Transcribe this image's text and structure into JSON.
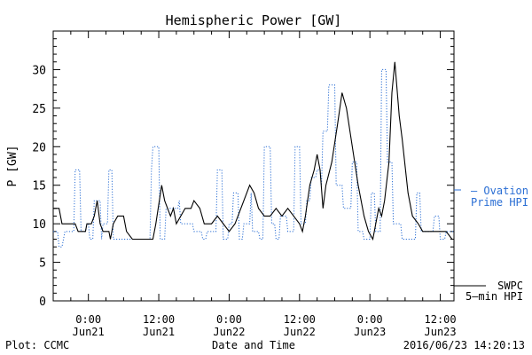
{
  "chart_data": {
    "type": "line",
    "title": "Hemispheric Power [GW]",
    "xlabel": "Date and Time",
    "ylabel": "P [GW]",
    "ylim": [
      0,
      35
    ],
    "yticks": [
      0,
      5,
      10,
      15,
      20,
      25,
      30
    ],
    "xlim": [
      "2016-06-20 18:00",
      "2016-06-23 14:20"
    ],
    "x_ticks": [
      {
        "x": "2016-06-21 00:00",
        "line1": "0:00",
        "line2": "Jun21"
      },
      {
        "x": "2016-06-21 12:00",
        "line1": "12:00",
        "line2": "Jun21"
      },
      {
        "x": "2016-06-22 00:00",
        "line1": "0:00",
        "line2": "Jun22"
      },
      {
        "x": "2016-06-22 12:00",
        "line1": "12:00",
        "line2": "Jun22"
      },
      {
        "x": "2016-06-23 00:00",
        "line1": "0:00",
        "line2": "Jun23"
      },
      {
        "x": "2016-06-23 12:00",
        "line1": "12:00",
        "line2": "Jun23"
      }
    ],
    "legend_placement": "right",
    "series": [
      {
        "name": "Ovation Prime HPI",
        "label_lines": [
          "Ovation",
          "Prime HPI"
        ],
        "style": "dotted",
        "color": "#2a6ed4",
        "points": [
          [
            "2016-06-20 18:00",
            9
          ],
          [
            "2016-06-20 18:45",
            9
          ],
          [
            "2016-06-20 19:00",
            7
          ],
          [
            "2016-06-20 19:30",
            7
          ],
          [
            "2016-06-20 20:00",
            9
          ],
          [
            "2016-06-20 21:30",
            9
          ],
          [
            "2016-06-20 21:45",
            17
          ],
          [
            "2016-06-20 22:30",
            17
          ],
          [
            "2016-06-20 22:45",
            9
          ],
          [
            "2016-06-20 23:30",
            9
          ],
          [
            "2016-06-20 23:45",
            10
          ],
          [
            "2016-06-21 00:00",
            10
          ],
          [
            "2016-06-21 00:15",
            8
          ],
          [
            "2016-06-21 00:45",
            8
          ],
          [
            "2016-06-21 01:00",
            13
          ],
          [
            "2016-06-21 02:00",
            13
          ],
          [
            "2016-06-21 02:15",
            8
          ],
          [
            "2016-06-21 02:30",
            10
          ],
          [
            "2016-06-21 03:15",
            10
          ],
          [
            "2016-06-21 03:30",
            17
          ],
          [
            "2016-06-21 04:00",
            17
          ],
          [
            "2016-06-21 04:15",
            8
          ],
          [
            "2016-06-21 10:30",
            8
          ],
          [
            "2016-06-21 10:45",
            17
          ],
          [
            "2016-06-21 11:00",
            20
          ],
          [
            "2016-06-21 12:00",
            20
          ],
          [
            "2016-06-21 12:15",
            8
          ],
          [
            "2016-06-21 13:00",
            8
          ],
          [
            "2016-06-21 13:15",
            12
          ],
          [
            "2016-06-21 15:15",
            12
          ],
          [
            "2016-06-21 15:30",
            13
          ],
          [
            "2016-06-21 15:45",
            10
          ],
          [
            "2016-06-21 17:45",
            10
          ],
          [
            "2016-06-21 18:00",
            9
          ],
          [
            "2016-06-21 19:15",
            9
          ],
          [
            "2016-06-21 19:30",
            8
          ],
          [
            "2016-06-21 20:00",
            8
          ],
          [
            "2016-06-21 20:15",
            9
          ],
          [
            "2016-06-21 21:45",
            9
          ],
          [
            "2016-06-21 22:00",
            17
          ],
          [
            "2016-06-21 22:45",
            17
          ],
          [
            "2016-06-21 23:00",
            8
          ],
          [
            "2016-06-21 23:45",
            8
          ],
          [
            "2016-06-22 00:00",
            10
          ],
          [
            "2016-06-22 00:30",
            10
          ],
          [
            "2016-06-22 00:45",
            14
          ],
          [
            "2016-06-22 01:30",
            14
          ],
          [
            "2016-06-22 01:45",
            8
          ],
          [
            "2016-06-22 02:15",
            8
          ],
          [
            "2016-06-22 02:30",
            10
          ],
          [
            "2016-06-22 03:30",
            10
          ],
          [
            "2016-06-22 03:45",
            14
          ],
          [
            "2016-06-22 04:00",
            9
          ],
          [
            "2016-06-22 05:00",
            9
          ],
          [
            "2016-06-22 05:15",
            8
          ],
          [
            "2016-06-22 05:45",
            8
          ],
          [
            "2016-06-22 06:00",
            20
          ],
          [
            "2016-06-22 07:00",
            20
          ],
          [
            "2016-06-22 07:15",
            10
          ],
          [
            "2016-06-22 07:45",
            10
          ],
          [
            "2016-06-22 08:00",
            8
          ],
          [
            "2016-06-22 08:30",
            8
          ],
          [
            "2016-06-22 08:45",
            11
          ],
          [
            "2016-06-22 09:45",
            11
          ],
          [
            "2016-06-22 10:00",
            9
          ],
          [
            "2016-06-22 11:00",
            9
          ],
          [
            "2016-06-22 11:15",
            20
          ],
          [
            "2016-06-22 12:00",
            20
          ],
          [
            "2016-06-22 12:15",
            10
          ],
          [
            "2016-06-22 13:00",
            10
          ],
          [
            "2016-06-22 13:15",
            13
          ],
          [
            "2016-06-22 13:45",
            13
          ],
          [
            "2016-06-22 14:00",
            16
          ],
          [
            "2016-06-22 14:45",
            16
          ],
          [
            "2016-06-22 15:00",
            17
          ],
          [
            "2016-06-22 15:30",
            17
          ],
          [
            "2016-06-22 15:45",
            15
          ],
          [
            "2016-06-22 16:00",
            22
          ],
          [
            "2016-06-22 16:45",
            22
          ],
          [
            "2016-06-22 17:00",
            28
          ],
          [
            "2016-06-22 18:00",
            28
          ],
          [
            "2016-06-22 18:15",
            15
          ],
          [
            "2016-06-22 19:15",
            15
          ],
          [
            "2016-06-22 19:30",
            12
          ],
          [
            "2016-06-22 20:45",
            12
          ],
          [
            "2016-06-22 21:00",
            18
          ],
          [
            "2016-06-22 21:45",
            18
          ],
          [
            "2016-06-22 22:00",
            9
          ],
          [
            "2016-06-22 22:45",
            9
          ],
          [
            "2016-06-22 23:00",
            8
          ],
          [
            "2016-06-23 00:00",
            8
          ],
          [
            "2016-06-23 00:15",
            14
          ],
          [
            "2016-06-23 00:45",
            14
          ],
          [
            "2016-06-23 01:00",
            9
          ],
          [
            "2016-06-23 01:45",
            9
          ],
          [
            "2016-06-23 02:00",
            30
          ],
          [
            "2016-06-23 02:45",
            30
          ],
          [
            "2016-06-23 03:00",
            18
          ],
          [
            "2016-06-23 03:45",
            18
          ],
          [
            "2016-06-23 04:00",
            10
          ],
          [
            "2016-06-23 05:15",
            10
          ],
          [
            "2016-06-23 05:30",
            8
          ],
          [
            "2016-06-23 07:45",
            8
          ],
          [
            "2016-06-23 08:00",
            14
          ],
          [
            "2016-06-23 08:30",
            14
          ],
          [
            "2016-06-23 08:45",
            9
          ],
          [
            "2016-06-23 10:45",
            9
          ],
          [
            "2016-06-23 11:00",
            11
          ],
          [
            "2016-06-23 11:45",
            11
          ],
          [
            "2016-06-23 12:00",
            8
          ],
          [
            "2016-06-23 12:45",
            8
          ],
          [
            "2016-06-23 13:00",
            9
          ],
          [
            "2016-06-23 14:20",
            9
          ]
        ]
      },
      {
        "name": "SWPC 5-min HPI",
        "label_lines": [
          "SWPC",
          "5-min HPI"
        ],
        "style": "solid",
        "color": "#000000",
        "points": [
          [
            "2016-06-20 18:00",
            12
          ],
          [
            "2016-06-20 19:00",
            12
          ],
          [
            "2016-06-20 19:30",
            10
          ],
          [
            "2016-06-20 21:45",
            10
          ],
          [
            "2016-06-20 22:15",
            9
          ],
          [
            "2016-06-20 23:30",
            9
          ],
          [
            "2016-06-20 23:45",
            10
          ],
          [
            "2016-06-21 00:30",
            10
          ],
          [
            "2016-06-21 01:00",
            11
          ],
          [
            "2016-06-21 01:30",
            13
          ],
          [
            "2016-06-21 02:00",
            10
          ],
          [
            "2016-06-21 02:30",
            9
          ],
          [
            "2016-06-21 03:30",
            9
          ],
          [
            "2016-06-21 03:45",
            8
          ],
          [
            "2016-06-21 04:15",
            10
          ],
          [
            "2016-06-21 05:00",
            11
          ],
          [
            "2016-06-21 06:00",
            11
          ],
          [
            "2016-06-21 06:30",
            9
          ],
          [
            "2016-06-21 07:30",
            8
          ],
          [
            "2016-06-21 11:00",
            8
          ],
          [
            "2016-06-21 11:30",
            10
          ],
          [
            "2016-06-21 12:30",
            15
          ],
          [
            "2016-06-21 13:00",
            13
          ],
          [
            "2016-06-21 14:00",
            11
          ],
          [
            "2016-06-21 14:30",
            12
          ],
          [
            "2016-06-21 15:00",
            10
          ],
          [
            "2016-06-21 15:45",
            11
          ],
          [
            "2016-06-21 16:30",
            12
          ],
          [
            "2016-06-21 17:30",
            12
          ],
          [
            "2016-06-21 18:00",
            13
          ],
          [
            "2016-06-21 19:00",
            12
          ],
          [
            "2016-06-21 19:45",
            10
          ],
          [
            "2016-06-21 21:00",
            10
          ],
          [
            "2016-06-21 22:00",
            11
          ],
          [
            "2016-06-21 23:00",
            10
          ],
          [
            "2016-06-22 00:00",
            9
          ],
          [
            "2016-06-22 01:00",
            10
          ],
          [
            "2016-06-22 02:00",
            12
          ],
          [
            "2016-06-22 03:00",
            14
          ],
          [
            "2016-06-22 03:30",
            15
          ],
          [
            "2016-06-22 04:15",
            14
          ],
          [
            "2016-06-22 05:00",
            12
          ],
          [
            "2016-06-22 06:00",
            11
          ],
          [
            "2016-06-22 07:00",
            11
          ],
          [
            "2016-06-22 08:00",
            12
          ],
          [
            "2016-06-22 09:00",
            11
          ],
          [
            "2016-06-22 10:00",
            12
          ],
          [
            "2016-06-22 11:00",
            11
          ],
          [
            "2016-06-22 12:00",
            10
          ],
          [
            "2016-06-22 12:30",
            9
          ],
          [
            "2016-06-22 13:00",
            11
          ],
          [
            "2016-06-22 13:45",
            15
          ],
          [
            "2016-06-22 14:30",
            17
          ],
          [
            "2016-06-22 15:00",
            19
          ],
          [
            "2016-06-22 15:30",
            17
          ],
          [
            "2016-06-22 16:00",
            12
          ],
          [
            "2016-06-22 16:30",
            15
          ],
          [
            "2016-06-22 17:30",
            18
          ],
          [
            "2016-06-22 18:30",
            23
          ],
          [
            "2016-06-22 19:15",
            27
          ],
          [
            "2016-06-22 20:00",
            25
          ],
          [
            "2016-06-22 21:00",
            20
          ],
          [
            "2016-06-22 22:00",
            15
          ],
          [
            "2016-06-22 23:00",
            11
          ],
          [
            "2016-06-22 23:45",
            9
          ],
          [
            "2016-06-23 00:30",
            8
          ],
          [
            "2016-06-23 01:00",
            10
          ],
          [
            "2016-06-23 01:30",
            12
          ],
          [
            "2016-06-23 02:00",
            11
          ],
          [
            "2016-06-23 02:30",
            13
          ],
          [
            "2016-06-23 03:15",
            18
          ],
          [
            "2016-06-23 03:45",
            27
          ],
          [
            "2016-06-23 04:15",
            31
          ],
          [
            "2016-06-23 05:00",
            24
          ],
          [
            "2016-06-23 05:30",
            21
          ],
          [
            "2016-06-23 06:30",
            14
          ],
          [
            "2016-06-23 07:15",
            11
          ],
          [
            "2016-06-23 08:15",
            10
          ],
          [
            "2016-06-23 09:00",
            9
          ],
          [
            "2016-06-23 10:00",
            9
          ],
          [
            "2016-06-23 11:30",
            9
          ],
          [
            "2016-06-23 13:00",
            9
          ],
          [
            "2016-06-23 14:00",
            8
          ],
          [
            "2016-06-23 14:20",
            8
          ]
        ]
      }
    ]
  },
  "footer": {
    "left": "Plot: CCMC",
    "right": "2016/06/23 14:20:13"
  },
  "legend": {
    "ovation_prefix": "– Ovation",
    "ovation_line2": "Prime HPI",
    "swpc_line1": "SWPC",
    "swpc_line2": "5–min HPI"
  }
}
